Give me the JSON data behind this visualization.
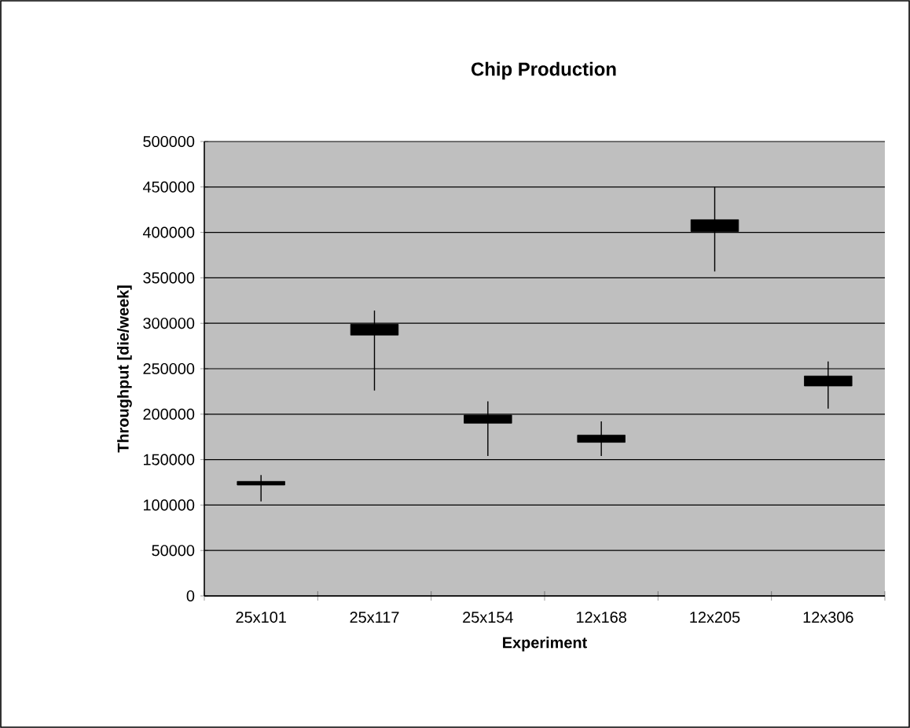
{
  "chart_data": {
    "type": "candlestick",
    "title": "Chip Production",
    "xlabel": "Experiment",
    "ylabel": "Throughput [die/week]",
    "categories": [
      "25x101",
      "25x117",
      "25x154",
      "12x168",
      "12x205",
      "12x306"
    ],
    "ohlc": [
      [
        126000,
        133000,
        104000,
        122000
      ],
      [
        299000,
        314000,
        226000,
        287000
      ],
      [
        199000,
        214000,
        154000,
        190000
      ],
      [
        177000,
        192000,
        154000,
        169000
      ],
      [
        414000,
        450000,
        357000,
        401000
      ],
      [
        242000,
        258000,
        206000,
        231000
      ]
    ],
    "ylim": [
      0,
      500000
    ],
    "yticks": [
      0,
      50000,
      100000,
      150000,
      200000,
      250000,
      300000,
      350000,
      400000,
      450000,
      500000
    ],
    "grid": "y"
  }
}
